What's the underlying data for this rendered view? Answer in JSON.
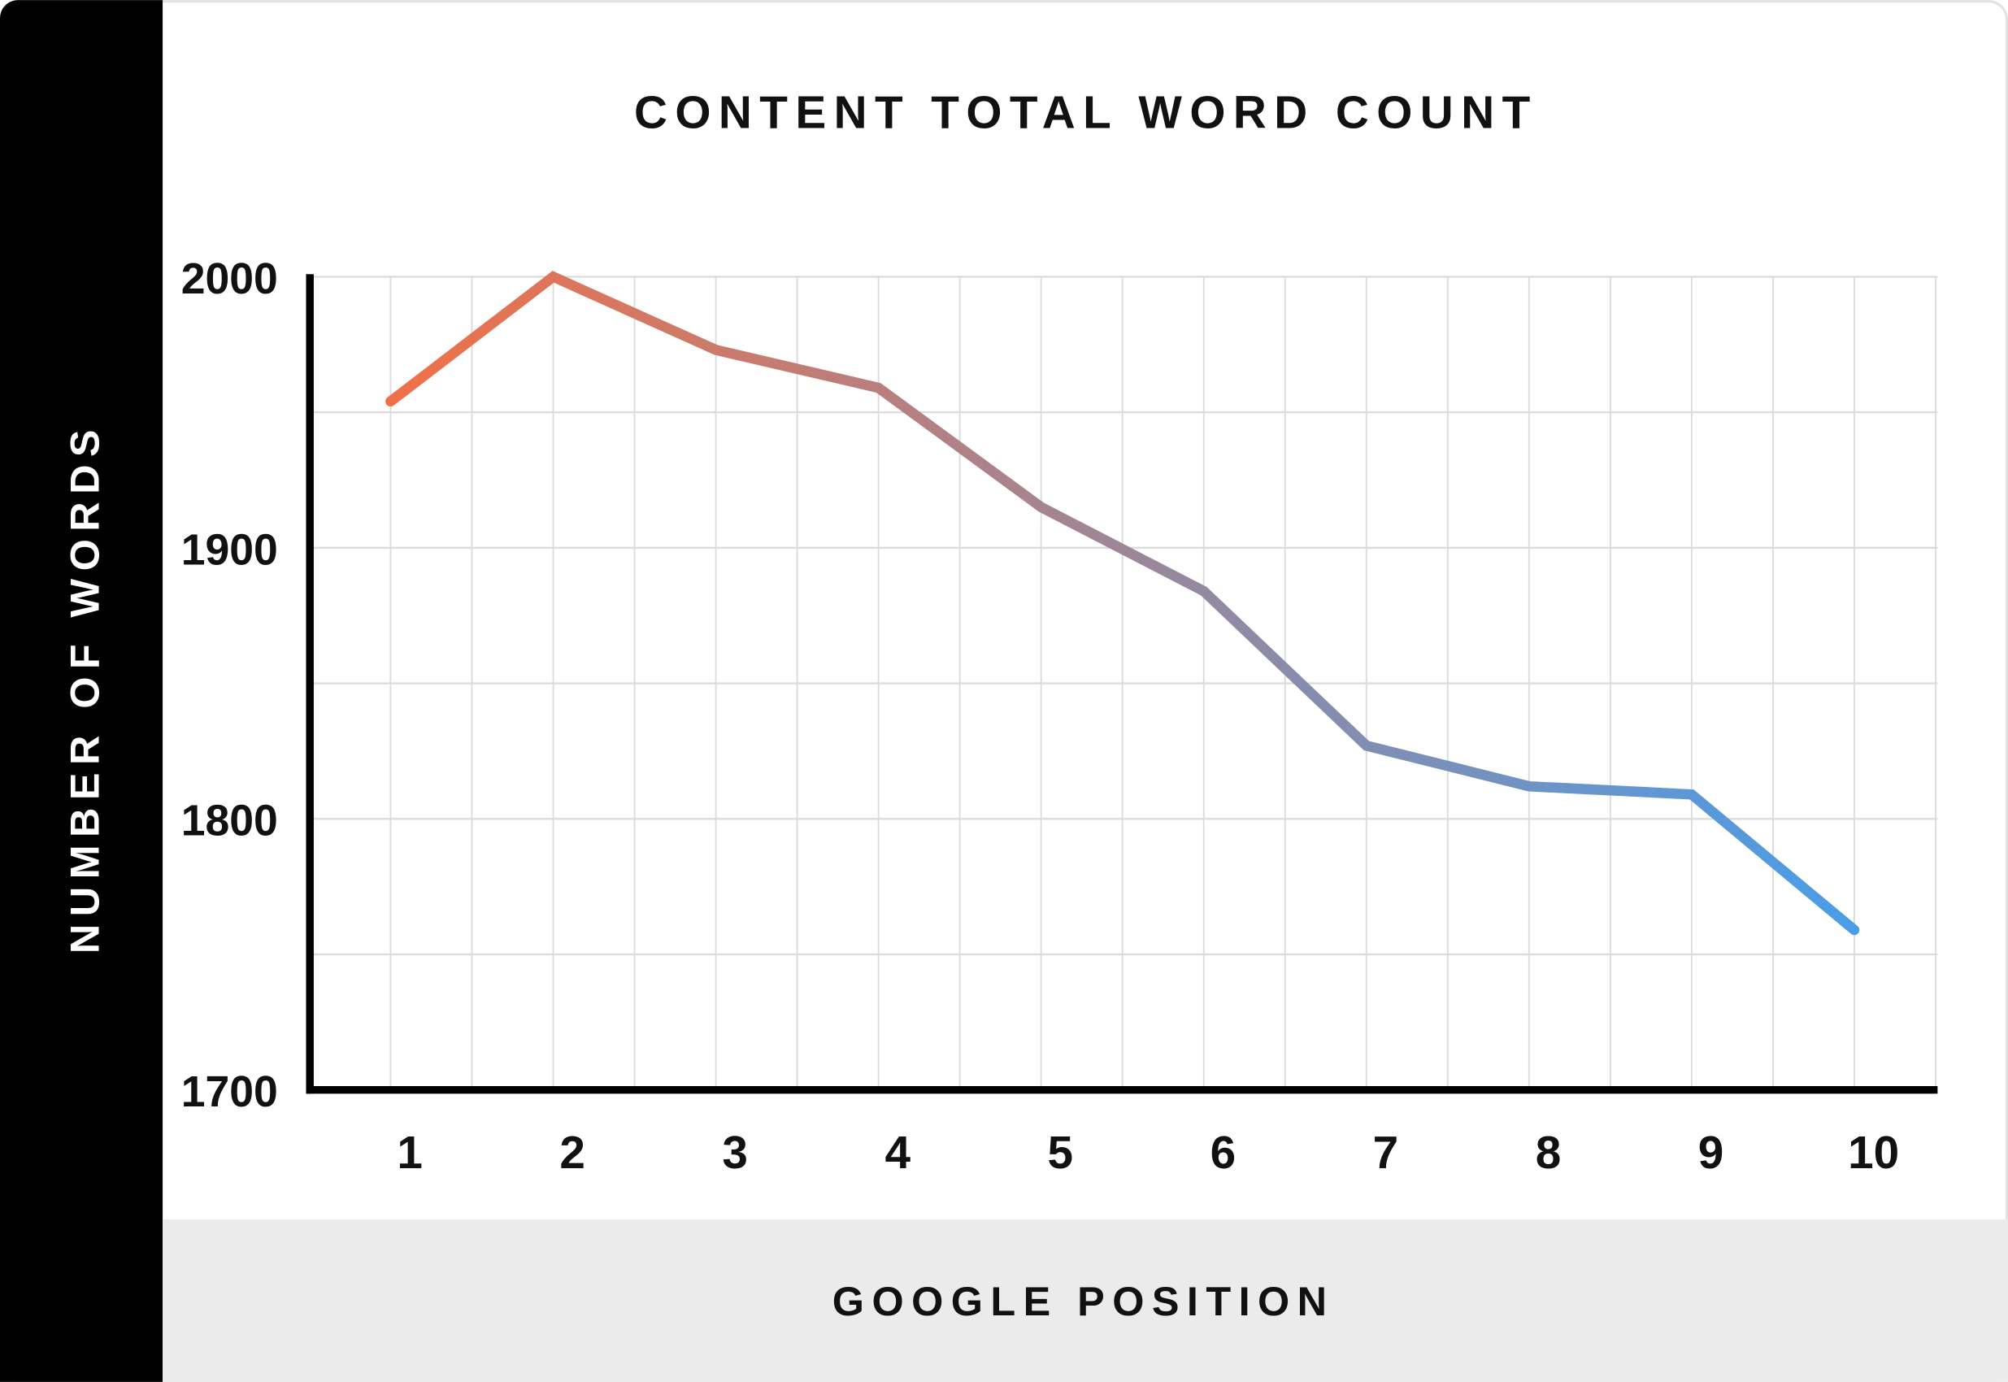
{
  "chart_data": {
    "type": "line",
    "title": "CONTENT TOTAL WORD COUNT",
    "xlabel": "GOOGLE POSITION",
    "ylabel": "NUMBER OF WORDS",
    "categories": [
      "1",
      "2",
      "3",
      "4",
      "5",
      "6",
      "7",
      "8",
      "9",
      "10"
    ],
    "values": [
      1954,
      2000,
      1973,
      1959,
      1915,
      1884,
      1827,
      1812,
      1809,
      1759
    ],
    "ylim": [
      1700,
      2000
    ],
    "yticks": [
      "2000",
      "1900",
      "1800",
      "1700"
    ],
    "grid": true,
    "line_gradient": [
      "#f07048",
      "#4a9de8"
    ]
  }
}
